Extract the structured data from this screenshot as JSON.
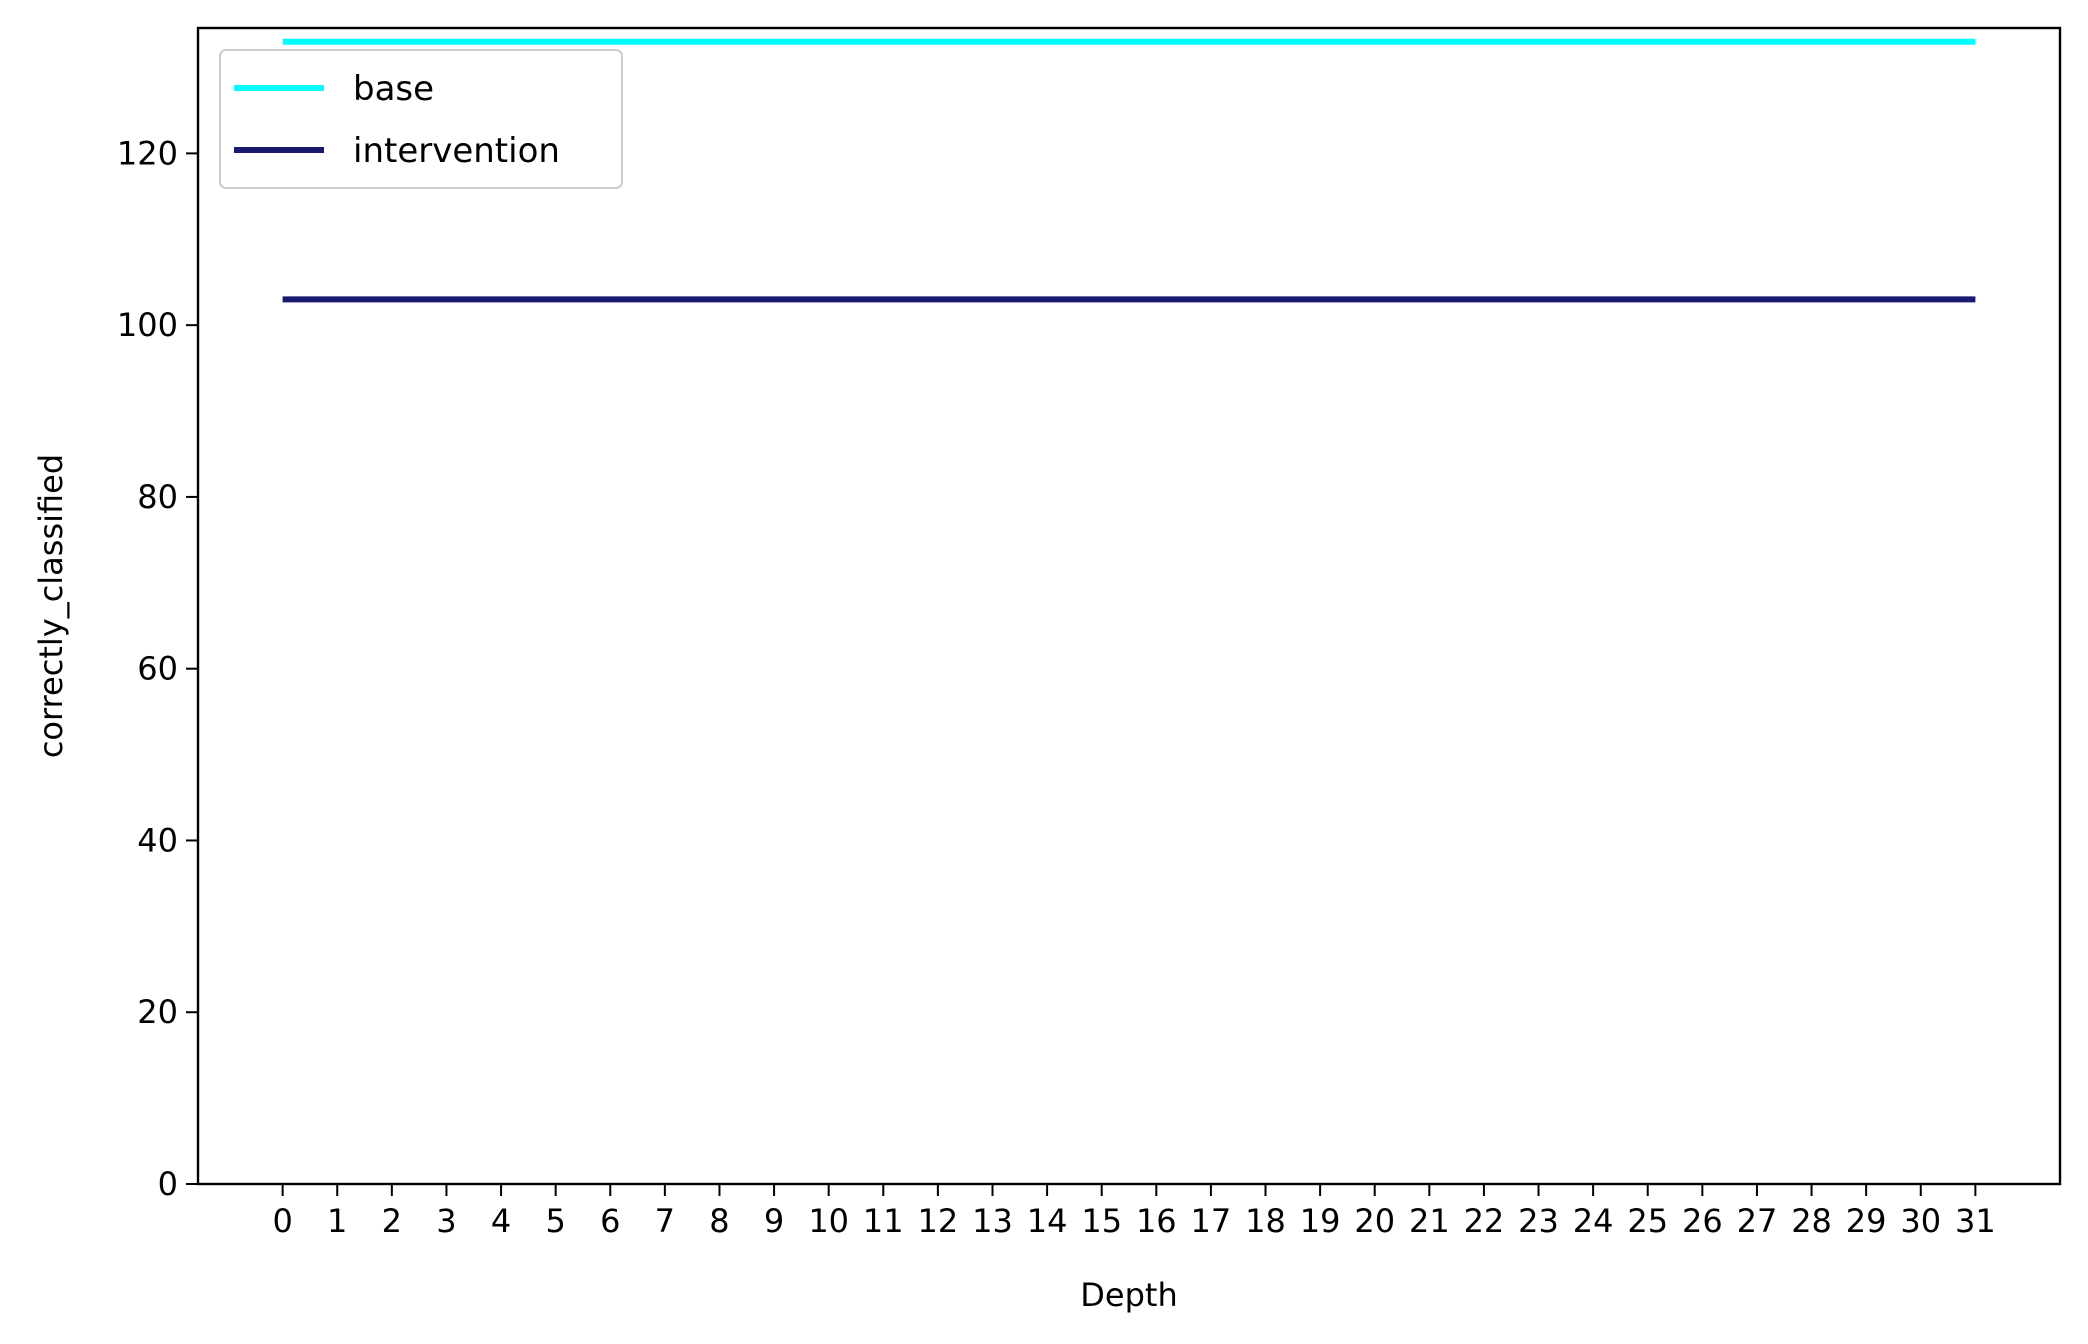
{
  "chart_data": {
    "type": "line",
    "title": "",
    "xlabel": "Depth",
    "ylabel": "correctly_classified",
    "x": [
      0,
      1,
      2,
      3,
      4,
      5,
      6,
      7,
      8,
      9,
      10,
      11,
      12,
      13,
      14,
      15,
      16,
      17,
      18,
      19,
      20,
      21,
      22,
      23,
      24,
      25,
      26,
      27,
      28,
      29,
      30,
      31
    ],
    "xlim": [
      -1.55,
      32.55
    ],
    "ylim": [
      0,
      134.6
    ],
    "yticks": [
      0,
      20,
      40,
      60,
      80,
      100,
      120
    ],
    "grid": false,
    "legend_position": "upper-left",
    "series": [
      {
        "name": "base",
        "color": "#00ffff",
        "values": [
          133,
          133,
          133,
          133,
          133,
          133,
          133,
          133,
          133,
          133,
          133,
          133,
          133,
          133,
          133,
          133,
          133,
          133,
          133,
          133,
          133,
          133,
          133,
          133,
          133,
          133,
          133,
          133,
          133,
          133,
          133,
          133
        ]
      },
      {
        "name": "intervention",
        "color": "#191970",
        "values": [
          103,
          103,
          103,
          103,
          103,
          103,
          103,
          103,
          103,
          103,
          103,
          103,
          103,
          103,
          103,
          103,
          103,
          103,
          103,
          103,
          103,
          103,
          103,
          103,
          103,
          103,
          103,
          103,
          103,
          103,
          103,
          103
        ]
      }
    ]
  }
}
